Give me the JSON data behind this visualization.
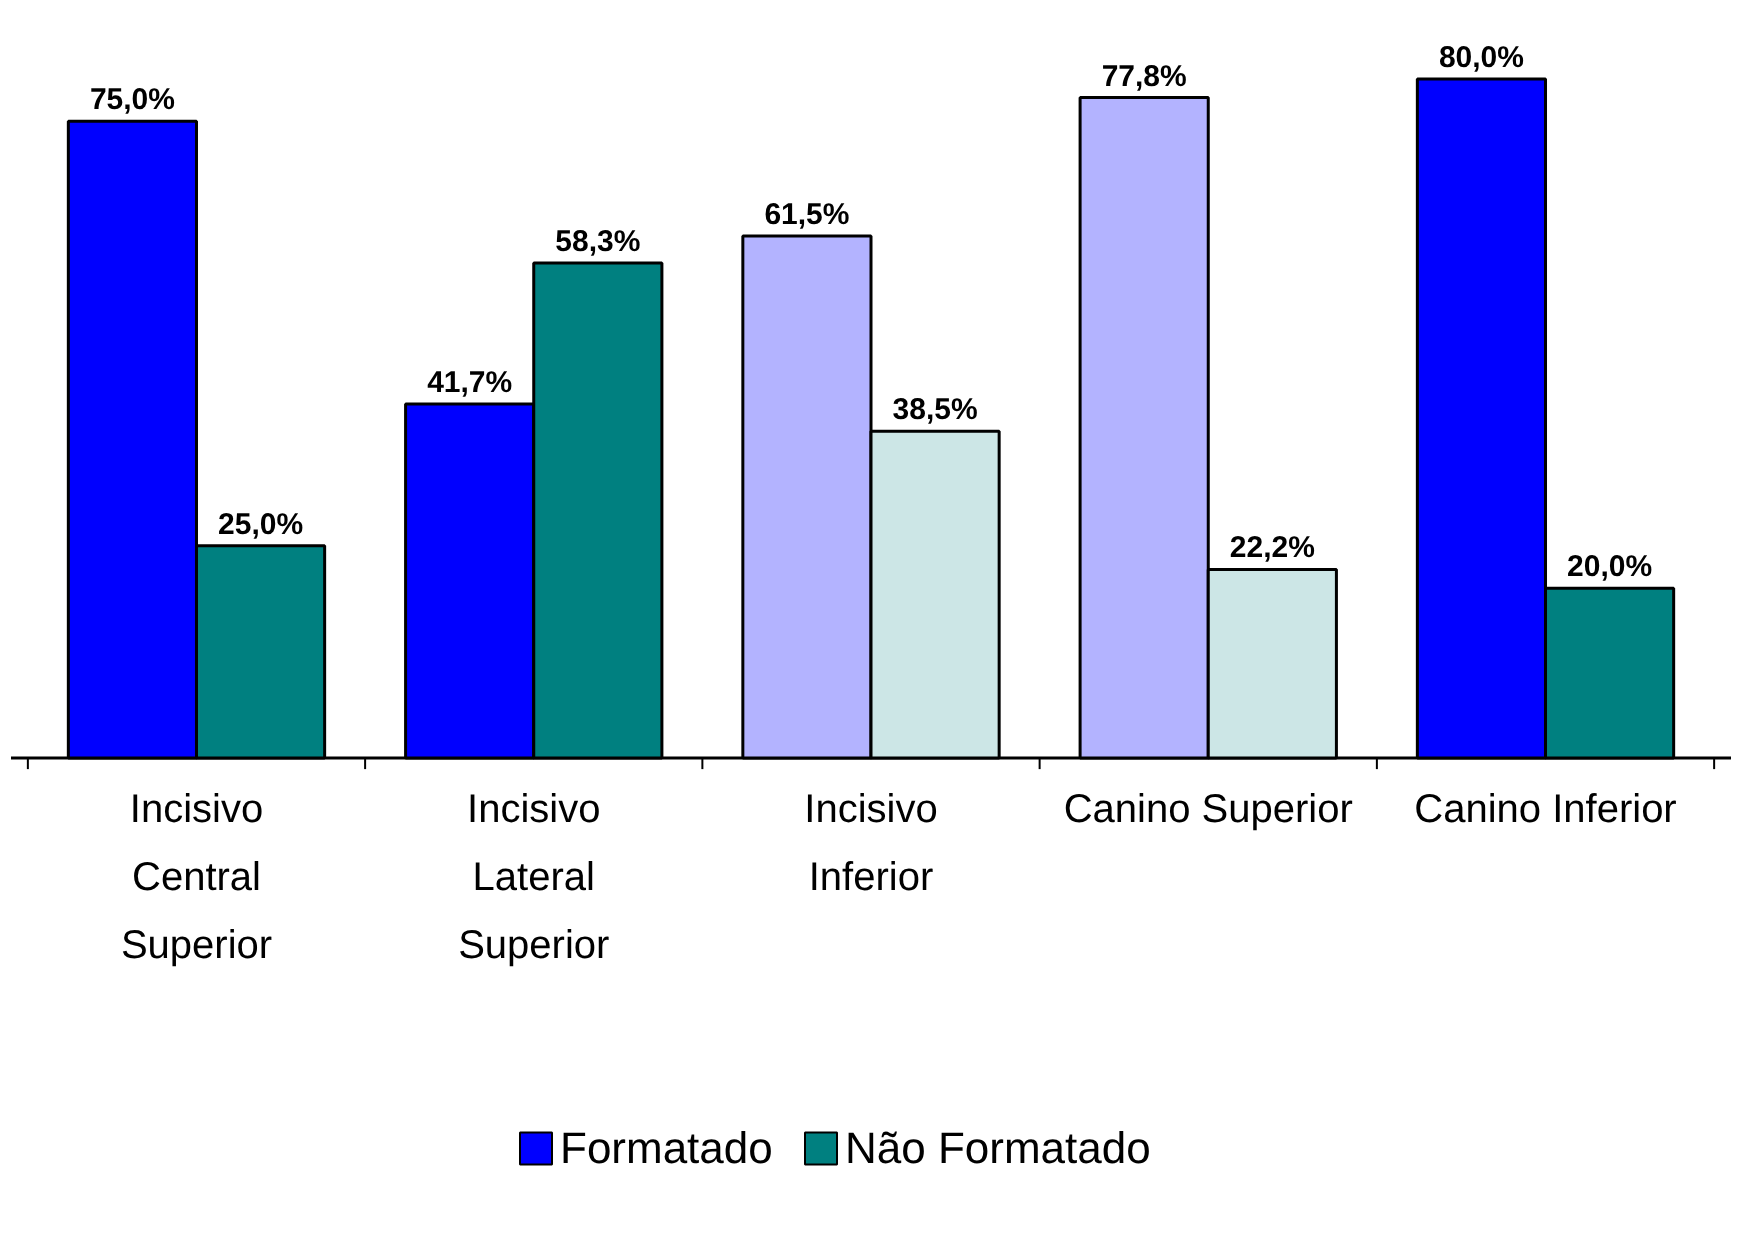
{
  "chart_data": {
    "type": "bar",
    "categories": [
      "Incisivo Central Superior",
      "Incisivo Lateral Superior",
      "Incisivo Inferior",
      "Canino Superior",
      "Canino Inferior"
    ],
    "series": [
      {
        "name": "Formatado",
        "color": "#0000ff",
        "colors": [
          "#0000ff",
          "#0000ff",
          "#b3b3ff",
          "#b3b3ff",
          "#0000ff"
        ],
        "values": [
          75.0,
          41.7,
          61.5,
          77.8,
          80.0
        ],
        "value_labels": [
          "75,0%",
          "41,7%",
          "61,5%",
          "77,8%",
          "80,0%"
        ]
      },
      {
        "name": "Não Formatado",
        "color": "#008080",
        "colors": [
          "#008080",
          "#008080",
          "#cce6e6",
          "#cce6e6",
          "#008080"
        ],
        "values": [
          25.0,
          58.3,
          38.5,
          22.2,
          20.0
        ],
        "value_labels": [
          "25,0%",
          "58,3%",
          "38,5%",
          "22,2%",
          "20,0%"
        ]
      }
    ],
    "legend": "bottom",
    "grid": false,
    "tick_labels": "x"
  }
}
